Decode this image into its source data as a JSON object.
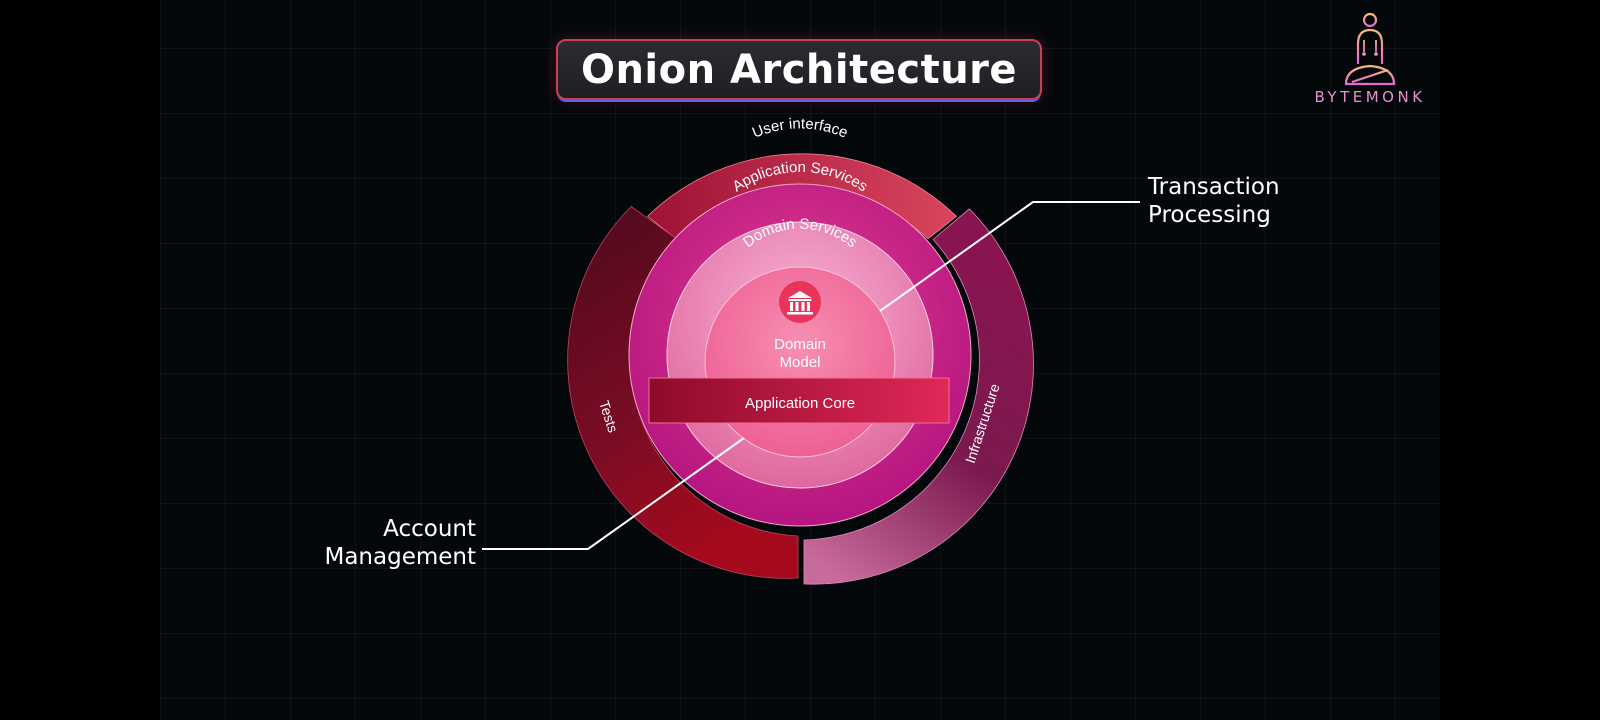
{
  "title": "Onion Architecture",
  "brand": {
    "name": "BYTEMONK",
    "logo_icon": "meditating-monk-icon"
  },
  "layers": {
    "user_interface": "User interface",
    "tests": "Tests",
    "infrastructure": "Infrastructure",
    "application_services": "Application Services",
    "domain_services": "Domain Services",
    "domain_model_line1": "Domain",
    "domain_model_line2": "Model",
    "application_core": "Application Core"
  },
  "core_icon": "bank-building-icon",
  "callouts": {
    "transaction_line1": "Transaction",
    "transaction_line2": "Processing",
    "account_line1": "Account",
    "account_line2": "Management"
  },
  "colors": {
    "background": "#05080b",
    "ui_segment": "#c42a50",
    "tests_segment": "#7a0c24",
    "infrastructure_segment": "#8e1b5a",
    "application_services": "#d92f85",
    "domain_services": "#ee8fc2",
    "domain_model": "#f46a9e",
    "application_core_band": "#b3123f"
  }
}
